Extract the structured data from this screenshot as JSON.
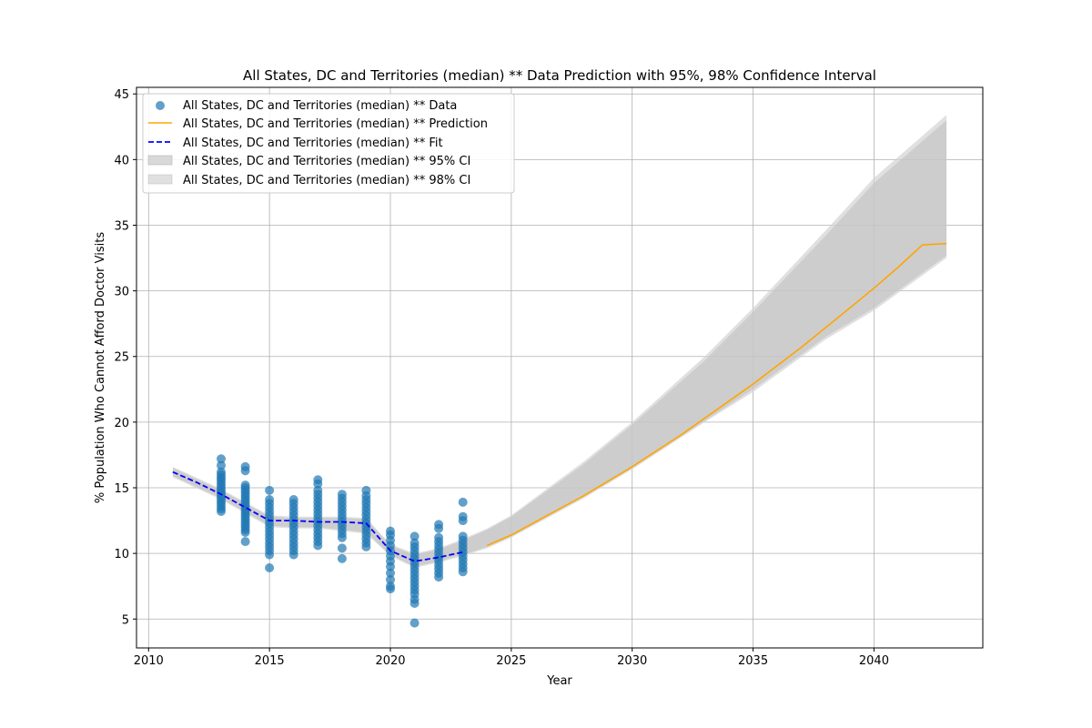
{
  "chart_data": {
    "type": "scatter",
    "title": "All States, DC and Territories (median) ** Data Prediction with 95%, 98% Confidence Interval",
    "xlabel": "Year",
    "ylabel": "% Population Who Cannot Afford Doctor Visits",
    "xlim": [
      2009.5,
      2044.5
    ],
    "ylim": [
      2.8,
      45.5
    ],
    "xticks": [
      2010,
      2015,
      2020,
      2025,
      2030,
      2035,
      2040
    ],
    "yticks": [
      5,
      10,
      15,
      20,
      25,
      30,
      35,
      40,
      45
    ],
    "grid": true,
    "legend_position": "top-left",
    "legend": [
      "All States, DC and Territories (median) ** Data",
      "All States, DC and Territories (median) ** Prediction",
      "All States, DC and Territories (median) ** Fit",
      "All States, DC and Territories (median) ** 95% CI",
      "All States, DC and Territories (median) ** 98% CI"
    ],
    "colors": {
      "data": "#1f77b4",
      "prediction": "#ffa500",
      "fit": "#0000ff",
      "ci95": "#c0c0c0",
      "ci98": "#d3d3d3"
    },
    "series": [
      {
        "name": "All States, DC and Territories (median) ** Data",
        "kind": "scatter",
        "points": [
          {
            "x": 2013,
            "ys": [
              17.2,
              16.7,
              16.2,
              16.0,
              15.8,
              15.6,
              15.4,
              15.2,
              15.0,
              14.8,
              14.6,
              14.4,
              14.2,
              14.0,
              13.8,
              13.6,
              13.4,
              13.2
            ]
          },
          {
            "x": 2014,
            "ys": [
              16.6,
              16.3,
              15.2,
              15.0,
              14.8,
              14.6,
              14.4,
              14.2,
              14.0,
              13.8,
              13.6,
              13.4,
              13.2,
              13.0,
              12.8,
              12.6,
              12.4,
              12.2,
              12.0,
              11.8,
              11.6,
              10.9
            ]
          },
          {
            "x": 2015,
            "ys": [
              14.8,
              14.1,
              13.8,
              13.5,
              13.2,
              12.9,
              12.6,
              12.3,
              12.0,
              11.7,
              11.4,
              11.1,
              10.8,
              10.5,
              10.2,
              9.9,
              8.9
            ]
          },
          {
            "x": 2016,
            "ys": [
              14.1,
              13.8,
              13.5,
              13.2,
              12.9,
              12.6,
              12.3,
              12.0,
              11.7,
              11.4,
              11.1,
              10.8,
              10.5,
              10.2,
              9.9
            ]
          },
          {
            "x": 2017,
            "ys": [
              15.6,
              15.3,
              14.8,
              14.5,
              14.2,
              13.9,
              13.6,
              13.3,
              13.0,
              12.7,
              12.4,
              12.1,
              11.8,
              11.5,
              11.2,
              10.9,
              10.6
            ]
          },
          {
            "x": 2018,
            "ys": [
              14.5,
              14.2,
              13.9,
              13.6,
              13.3,
              13.0,
              12.7,
              12.4,
              12.1,
              11.8,
              11.5,
              11.2,
              10.4,
              9.6
            ]
          },
          {
            "x": 2019,
            "ys": [
              14.8,
              14.4,
              14.1,
              13.8,
              13.5,
              13.2,
              12.9,
              12.6,
              12.3,
              12.0,
              11.7,
              11.4,
              11.1,
              10.8,
              10.5
            ]
          },
          {
            "x": 2020,
            "ys": [
              11.7,
              11.4,
              11.0,
              10.6,
              10.2,
              9.8,
              9.4,
              9.0,
              8.5,
              8.0,
              7.5,
              7.3
            ]
          },
          {
            "x": 2021,
            "ys": [
              11.3,
              10.8,
              10.5,
              10.2,
              9.9,
              9.6,
              9.3,
              9.0,
              8.7,
              8.4,
              8.1,
              7.8,
              7.5,
              7.2,
              6.9,
              6.5,
              6.2,
              4.7
            ]
          },
          {
            "x": 2022,
            "ys": [
              12.2,
              11.9,
              11.2,
              10.9,
              10.6,
              10.3,
              10.0,
              9.7,
              9.4,
              9.1,
              8.8,
              8.5,
              8.2
            ]
          },
          {
            "x": 2023,
            "ys": [
              13.9,
              12.8,
              12.5,
              11.3,
              11.0,
              10.7,
              10.4,
              10.1,
              9.8,
              9.5,
              9.2,
              8.9,
              8.6
            ]
          }
        ]
      },
      {
        "name": "All States, DC and Territories (median) ** Prediction",
        "kind": "line",
        "x": [
          2024,
          2025,
          2026,
          2027,
          2028,
          2029,
          2030,
          2031,
          2032,
          2033,
          2034,
          2035,
          2036,
          2037,
          2038,
          2039,
          2040,
          2041,
          2042,
          2043
        ],
        "y": [
          10.6,
          11.4,
          12.4,
          13.4,
          14.4,
          15.5,
          16.6,
          17.8,
          19.0,
          20.3,
          21.6,
          22.9,
          24.3,
          25.7,
          27.2,
          28.7,
          30.2,
          31.8,
          33.5,
          33.6
        ]
      },
      {
        "name": "All States, DC and Territories (median) ** Fit",
        "kind": "line",
        "x": [
          2011,
          2012,
          2013,
          2014,
          2015,
          2016,
          2017,
          2018,
          2019,
          2020,
          2021,
          2022,
          2023
        ],
        "y": [
          16.2,
          15.4,
          14.5,
          13.5,
          12.5,
          12.5,
          12.4,
          12.4,
          12.3,
          10.2,
          9.4,
          9.7,
          10.1
        ]
      },
      {
        "name": "All States, DC and Territories (median) ** 95% CI",
        "kind": "band",
        "x": [
          2011,
          2013,
          2015,
          2016,
          2017,
          2018,
          2019,
          2020,
          2021,
          2022,
          2023,
          2024,
          2025,
          2028,
          2030,
          2033,
          2035,
          2038,
          2040,
          2043
        ],
        "lower": [
          15.9,
          14.2,
          12.1,
          12.0,
          12.0,
          11.8,
          11.6,
          9.9,
          9.0,
          9.4,
          9.9,
          10.5,
          11.3,
          14.3,
          16.5,
          20.1,
          22.5,
          26.5,
          28.7,
          32.7
        ],
        "upper": [
          16.5,
          14.8,
          12.8,
          12.7,
          12.7,
          12.7,
          12.6,
          10.6,
          9.9,
          10.3,
          11.0,
          11.8,
          12.8,
          16.8,
          19.8,
          24.7,
          28.4,
          34.2,
          38.2,
          43.0
        ]
      },
      {
        "name": "All States, DC and Territories (median) ** 98% CI",
        "kind": "band",
        "x": [
          2011,
          2013,
          2015,
          2016,
          2017,
          2018,
          2019,
          2020,
          2021,
          2022,
          2023,
          2024,
          2025,
          2028,
          2030,
          2033,
          2035,
          2038,
          2040,
          2043
        ],
        "lower": [
          15.8,
          14.1,
          12.0,
          11.9,
          11.9,
          11.7,
          11.5,
          9.8,
          8.9,
          9.3,
          9.8,
          10.4,
          11.2,
          14.2,
          16.4,
          20.0,
          22.3,
          26.3,
          28.5,
          32.5
        ],
        "upper": [
          16.6,
          14.9,
          12.9,
          12.8,
          12.8,
          12.8,
          12.7,
          10.7,
          10.0,
          10.4,
          11.1,
          11.9,
          12.9,
          17.0,
          20.0,
          25.0,
          28.7,
          34.6,
          38.6,
          43.4
        ]
      }
    ]
  }
}
